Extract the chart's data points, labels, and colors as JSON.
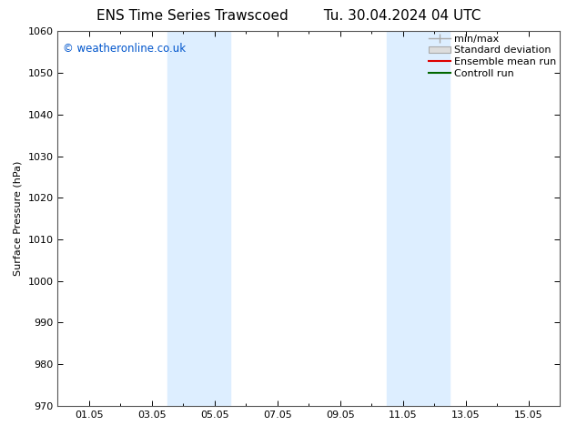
{
  "title": "ENS Time Series Trawscoed",
  "title2": "Tu. 30.04.2024 04 UTC",
  "ylabel": "Surface Pressure (hPa)",
  "ylim": [
    970,
    1060
  ],
  "yticks": [
    970,
    980,
    990,
    1000,
    1010,
    1020,
    1030,
    1040,
    1050,
    1060
  ],
  "xlim_start": 0,
  "xlim_end": 16,
  "xtick_positions": [
    1,
    3,
    5,
    7,
    9,
    11,
    13,
    15
  ],
  "xtick_labels": [
    "01.05",
    "03.05",
    "05.05",
    "07.05",
    "09.05",
    "11.05",
    "13.05",
    "15.05"
  ],
  "shaded_bands": [
    {
      "xmin": 3.5,
      "xmax": 5.5
    },
    {
      "xmin": 10.5,
      "xmax": 12.5
    }
  ],
  "shade_color": "#ddeeff",
  "watermark": "© weatheronline.co.uk",
  "watermark_color": "#0055cc",
  "legend_labels": [
    "min/max",
    "Standard deviation",
    "Ensemble mean run",
    "Controll run"
  ],
  "legend_line_color": "#aaaaaa",
  "legend_std_facecolor": "#dddddd",
  "legend_std_edgecolor": "#aaaaaa",
  "legend_ens_color": "#dd0000",
  "legend_ctrl_color": "#006600",
  "background_color": "#ffffff",
  "title_fontsize": 11,
  "axis_fontsize": 8,
  "legend_fontsize": 8
}
